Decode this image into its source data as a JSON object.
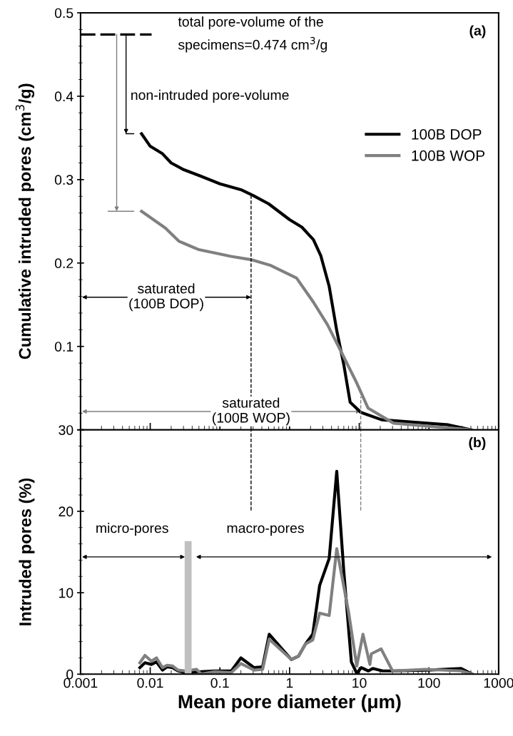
{
  "chart_data": [
    {
      "type": "line",
      "ylabel": "Cumulative intruded pores (cm$^{3}$/g)",
      "log": "x",
      "xlim": [
        0.001,
        1000
      ],
      "xticks": [
        0.001,
        0.01,
        0.1,
        1,
        10,
        100,
        1000
      ],
      "ylim": [
        0,
        0.5
      ],
      "yticks": [
        {
          "value": 0,
          "label": null
        },
        0.1,
        0.2,
        0.3,
        0.4,
        0.5
      ],
      "tick_labels": "y",
      "grid": false,
      "legend": "right",
      "line_style": "solid",
      "marker": "none",
      "series": [
        {
          "name": "100B DOP",
          "color": "#000000",
          "x": [
            0.0075,
            0.01,
            0.015,
            0.02,
            0.03,
            0.05,
            0.1,
            0.2,
            0.3,
            0.5,
            1,
            1.5,
            2.2,
            2.8,
            3.7,
            4.75,
            6.0,
            7.4,
            10.5,
            21,
            190,
            400
          ],
          "values": [
            0.355,
            0.34,
            0.331,
            0.32,
            0.312,
            0.305,
            0.295,
            0.288,
            0.281,
            0.271,
            0.252,
            0.243,
            0.228,
            0.209,
            0.172,
            0.119,
            0.078,
            0.033,
            0.021,
            0.012,
            0.006,
            0.0
          ]
        },
        {
          "name": "100B WOP",
          "color": "#808080",
          "x": [
            0.0075,
            0.0165,
            0.026,
            0.05,
            0.145,
            0.28,
            0.54,
            1.26,
            2.2,
            3.5,
            5.7,
            9.1,
            13.4,
            31,
            400
          ],
          "values": [
            0.262,
            0.242,
            0.226,
            0.216,
            0.208,
            0.204,
            0.197,
            0.182,
            0.153,
            0.126,
            0.091,
            0.057,
            0.026,
            0.008,
            0.0
          ]
        }
      ],
      "ref_lines": [
        {
          "axis": "y",
          "value": 0.474,
          "color": "#000000",
          "line_style": "dashed"
        },
        {
          "axis": "x",
          "value": 0.28,
          "color": "#000000",
          "line_style": "dashed"
        }
      ],
      "annotations": [
        "total pore-volume of the\nspecimens=0.474 cm$^{3}$/g",
        "non-intruded pore-volume",
        "saturated\n(100B DOP)",
        "saturated\n(100B WOP)",
        "(a)"
      ]
    },
    {
      "type": "line",
      "xlabel": "Mean pore diameter (μm)",
      "ylabel": "Intruded pores (%)",
      "log": "x",
      "xlim": [
        0.001,
        1000
      ],
      "xticks": [
        0.001,
        0.01,
        0.1,
        1,
        10,
        100,
        1000
      ],
      "ylim": [
        0,
        30
      ],
      "yticks": [
        0,
        10,
        20,
        30
      ],
      "grid": false,
      "line_style": "solid",
      "marker": "none",
      "series": [
        {
          "color": "#000000",
          "x": [
            0.0071,
            0.0084,
            0.0104,
            0.0123,
            0.015,
            0.0174,
            0.021,
            0.025,
            0.032,
            0.083,
            0.146,
            0.2,
            0.31,
            0.41,
            0.51,
            1.06,
            1.34,
            1.69,
            2.15,
            2.7,
            3.7,
            4.75,
            6.0,
            7.7,
            9.2,
            10.7,
            13.5,
            15.6,
            21.6,
            31,
            96,
            290,
            420
          ],
          "values": [
            0.8,
            1.4,
            1.2,
            1.5,
            0.5,
            0.9,
            0.8,
            0.4,
            0.2,
            0.4,
            0.4,
            2.0,
            0.8,
            0.9,
            4.9,
            1.8,
            2.2,
            3.7,
            4.9,
            10.9,
            14.2,
            24.9,
            12.6,
            1.5,
            0.1,
            0.8,
            0.4,
            0.7,
            0.4,
            0.4,
            0.5,
            0.7,
            0.0
          ]
        },
        {
          "color": "#808080",
          "x": [
            0.0071,
            0.0084,
            0.0104,
            0.0123,
            0.015,
            0.0174,
            0.021,
            0.025,
            0.032,
            0.046,
            0.054,
            0.083,
            0.146,
            0.2,
            0.31,
            0.41,
            0.51,
            1.06,
            1.34,
            1.69,
            2.15,
            2.7,
            3.7,
            4.75,
            7.0,
            9.2,
            11.3,
            14.2,
            14.9,
            20.6,
            30,
            90,
            290,
            420
          ],
          "values": [
            1.4,
            2.3,
            1.6,
            2.0,
            0.8,
            1.1,
            1.0,
            0.5,
            0.4,
            0.6,
            0.0,
            0.3,
            0.2,
            1.3,
            0.5,
            0.6,
            4.3,
            1.8,
            2.2,
            3.7,
            4.2,
            7.5,
            7.2,
            15.4,
            7.7,
            1.0,
            4.9,
            1.2,
            2.5,
            3.1,
            0.4,
            0.6,
            0.4,
            0.0
          ]
        }
      ],
      "ref_lines": [
        {
          "axis": "x",
          "value": 0.035,
          "color": "#c0c0c0"
        },
        {
          "axis": "x",
          "value": 0.28,
          "color": "#000000",
          "line_style": "dashed"
        },
        {
          "axis": "x",
          "value": 10.5,
          "color": "#808080",
          "line_style": "dashed"
        }
      ],
      "annotations": [
        "micro-pores",
        "macro-pores",
        "(b)"
      ]
    }
  ]
}
